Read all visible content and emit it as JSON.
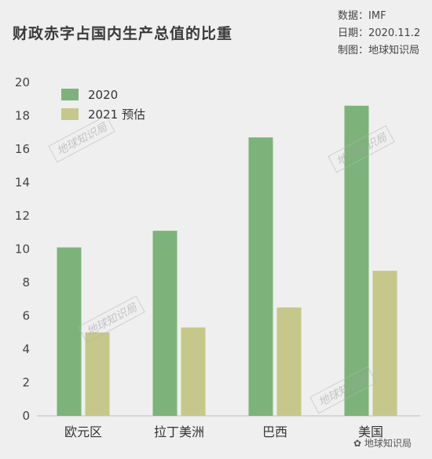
{
  "title": "财政赤字占国内生产总值的比重",
  "meta": {
    "source_label": "数据：",
    "source_value": "IMF",
    "date_label": "日期：",
    "date_value": "2020.11.2",
    "maker_label": "制图：",
    "maker_value": "地球知识局"
  },
  "watermark": "地球知识局",
  "corner_watermark": "地球知识局",
  "colors": {
    "series_2020": "#7db37a",
    "series_2021": "#c6c78a",
    "background": "#efefef"
  },
  "chart_data": {
    "type": "bar",
    "title": "财政赤字占国内生产总值的比重",
    "categories": [
      "欧元区",
      "拉丁美洲",
      "巴西",
      "美国"
    ],
    "series": [
      {
        "name": "2020",
        "values": [
          10.1,
          11.1,
          16.7,
          18.6
        ]
      },
      {
        "name": "2021 预估",
        "values": [
          5.0,
          5.3,
          6.5,
          8.7
        ]
      }
    ],
    "ylim": [
      0,
      20
    ],
    "yticks": [
      0,
      2,
      4,
      6,
      8,
      10,
      12,
      14,
      16,
      18,
      20
    ],
    "xlabel": "",
    "ylabel": "",
    "legend": "top-left",
    "grid": false
  }
}
